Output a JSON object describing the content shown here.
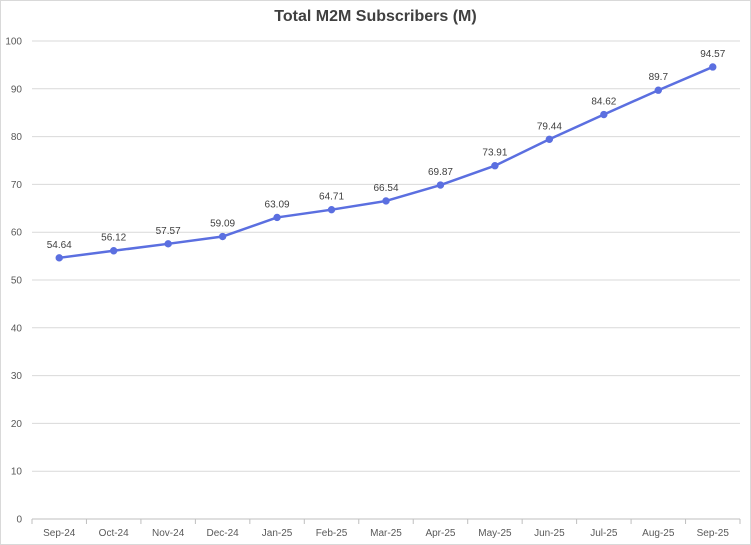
{
  "chart_data": {
    "type": "line",
    "title": "Total M2M Subscribers (M)",
    "xlabel": "",
    "ylabel": "",
    "categories": [
      "Sep-24",
      "Oct-24",
      "Nov-24",
      "Dec-24",
      "Jan-25",
      "Feb-25",
      "Mar-25",
      "Apr-25",
      "May-25",
      "Jun-25",
      "Jul-25",
      "Aug-25",
      "Sep-25"
    ],
    "series": [
      {
        "values": [
          54.64,
          56.12,
          57.57,
          59.09,
          63.09,
          64.71,
          66.54,
          69.87,
          73.91,
          79.44,
          84.62,
          89.7,
          94.57
        ],
        "color": "#5b6fe0"
      }
    ],
    "data_labels": [
      "54.64",
      "56.12",
      "57.57",
      "59.09",
      "63.09",
      "64.71",
      "66.54",
      "69.87",
      "73.91",
      "79.44",
      "84.62",
      "89.7",
      "94.57"
    ],
    "ylim": [
      0,
      100
    ],
    "yticks": [
      0,
      10,
      20,
      30,
      40,
      50,
      60,
      70,
      80,
      90,
      100
    ],
    "ytick_labels": [
      "0",
      "10",
      "20",
      "30",
      "40",
      "50",
      "60",
      "70",
      "80",
      "90",
      "100"
    ],
    "grid": true,
    "legend": "none",
    "gridline_color": "#d9d9d9",
    "axis_color": "#bfbfbf",
    "text_color": "#595959"
  }
}
